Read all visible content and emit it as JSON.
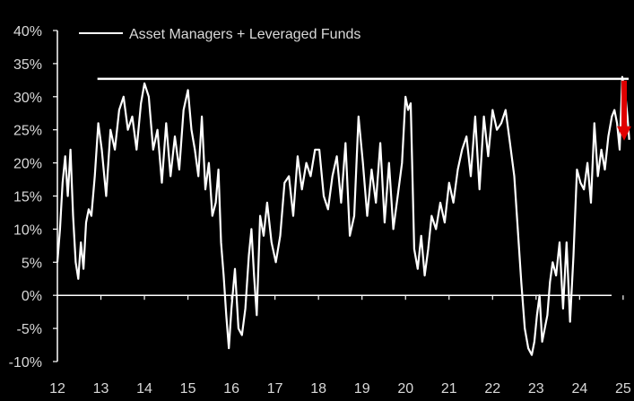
{
  "chart_data": {
    "type": "line",
    "title": "",
    "xlabel": "",
    "ylabel": "",
    "legend": {
      "position": "top-left",
      "entries": [
        "Asset Managers + Leveraged Funds"
      ]
    },
    "grid": false,
    "xlim": [
      2012.0,
      2025.25
    ],
    "ylim": [
      -10,
      40
    ],
    "x_tick_labels": [
      "12",
      "13",
      "14",
      "15",
      "16",
      "17",
      "18",
      "19",
      "20",
      "21",
      "22",
      "23",
      "24",
      "25"
    ],
    "x_tick_values": [
      2012,
      2013,
      2014,
      2015,
      2016,
      2017,
      2018,
      2019,
      2020,
      2021,
      2022,
      2023,
      2024,
      2025
    ],
    "y_tick_labels": [
      "40%",
      "35%",
      "30%",
      "25%",
      "20%",
      "15%",
      "10%",
      "5%",
      "0%",
      "-5%",
      "-10%"
    ],
    "y_tick_values": [
      40,
      35,
      30,
      25,
      20,
      15,
      10,
      5,
      0,
      -5,
      -10
    ],
    "colors": {
      "series": "#ffffff",
      "reference_line": "#ffffff",
      "arrow": "#e00000",
      "background": "#000000",
      "text": "#d9d9d9"
    },
    "reference_line": {
      "y": 32.7,
      "x_start": 2012.92,
      "x_end": 2025.25
    },
    "arrow": {
      "x": 2025.23,
      "y_from": 32.7,
      "y_to": 25.0
    },
    "series": [
      {
        "name": "Asset Managers + Leveraged Funds",
        "x": [
          2012.0,
          2012.06,
          2012.12,
          2012.18,
          2012.24,
          2012.3,
          2012.36,
          2012.42,
          2012.48,
          2012.54,
          2012.6,
          2012.66,
          2012.72,
          2012.78,
          2012.86,
          2012.94,
          2013.02,
          2013.12,
          2013.22,
          2013.32,
          2013.42,
          2013.52,
          2013.62,
          2013.72,
          2013.82,
          2013.92,
          2014.0,
          2014.1,
          2014.2,
          2014.3,
          2014.4,
          2014.5,
          2014.6,
          2014.7,
          2014.8,
          2014.9,
          2015.0,
          2015.08,
          2015.16,
          2015.24,
          2015.32,
          2015.4,
          2015.48,
          2015.56,
          2015.64,
          2015.7,
          2015.76,
          2015.82,
          2015.88,
          2015.94,
          2016.0,
          2016.08,
          2016.16,
          2016.24,
          2016.32,
          2016.4,
          2016.46,
          2016.52,
          2016.58,
          2016.66,
          2016.74,
          2016.82,
          2016.92,
          2017.02,
          2017.12,
          2017.22,
          2017.32,
          2017.42,
          2017.52,
          2017.62,
          2017.72,
          2017.82,
          2017.92,
          2018.02,
          2018.12,
          2018.22,
          2018.32,
          2018.42,
          2018.52,
          2018.62,
          2018.72,
          2018.82,
          2018.92,
          2019.02,
          2019.12,
          2019.22,
          2019.32,
          2019.42,
          2019.52,
          2019.62,
          2019.72,
          2019.82,
          2019.92,
          2020.0,
          2020.06,
          2020.12,
          2020.2,
          2020.28,
          2020.36,
          2020.44,
          2020.52,
          2020.6,
          2020.7,
          2020.8,
          2020.9,
          2021.0,
          2021.1,
          2021.2,
          2021.3,
          2021.4,
          2021.5,
          2021.6,
          2021.7,
          2021.8,
          2021.9,
          2022.0,
          2022.1,
          2022.2,
          2022.3,
          2022.4,
          2022.5,
          2022.58,
          2022.66,
          2022.74,
          2022.82,
          2022.9,
          2022.96,
          2023.02,
          2023.08,
          2023.14,
          2023.2,
          2023.26,
          2023.32,
          2023.38,
          2023.46,
          2023.54,
          2023.62,
          2023.7,
          2023.78,
          2023.86,
          2023.94,
          2024.02,
          2024.1,
          2024.18,
          2024.26,
          2024.34,
          2024.42,
          2024.5,
          2024.58,
          2024.66,
          2024.74,
          2024.8,
          2024.86,
          2024.92,
          2024.98,
          2025.04,
          2025.1,
          2025.14
        ],
        "y": [
          5,
          10,
          17,
          21,
          15,
          22,
          12,
          5,
          2.5,
          8,
          4,
          11,
          13,
          12,
          18,
          26,
          22,
          15,
          25,
          22,
          28,
          30,
          25,
          27,
          22,
          29,
          32,
          30,
          22,
          25,
          17,
          26,
          18,
          24,
          19,
          28,
          31,
          25,
          22,
          18,
          27,
          16,
          20,
          12,
          14,
          19,
          8,
          3,
          -3,
          -8,
          -2,
          4,
          -5,
          -6,
          -2,
          6,
          10,
          3,
          -3,
          12,
          9,
          14,
          8,
          5,
          9,
          17,
          18,
          12,
          21,
          16,
          20,
          18,
          22,
          22,
          15,
          13,
          18,
          21,
          14,
          23,
          9,
          12,
          27,
          20,
          12,
          19,
          14,
          23,
          11,
          20,
          10,
          15,
          20,
          30,
          28,
          29,
          7,
          4,
          9,
          3,
          7,
          12,
          10,
          14,
          11,
          17,
          14,
          19,
          22,
          24,
          18,
          27,
          16,
          27,
          21,
          28,
          25,
          26,
          28,
          23,
          18,
          10,
          2,
          -5,
          -8,
          -9,
          -7,
          -3,
          0,
          -7,
          -5,
          -3,
          2,
          5,
          3,
          8,
          -2,
          8,
          -4,
          6,
          19,
          17,
          16,
          20,
          14,
          26,
          18,
          22,
          19,
          24,
          27,
          28,
          26,
          22,
          33,
          31,
          27,
          23.5
        ]
      }
    ]
  }
}
